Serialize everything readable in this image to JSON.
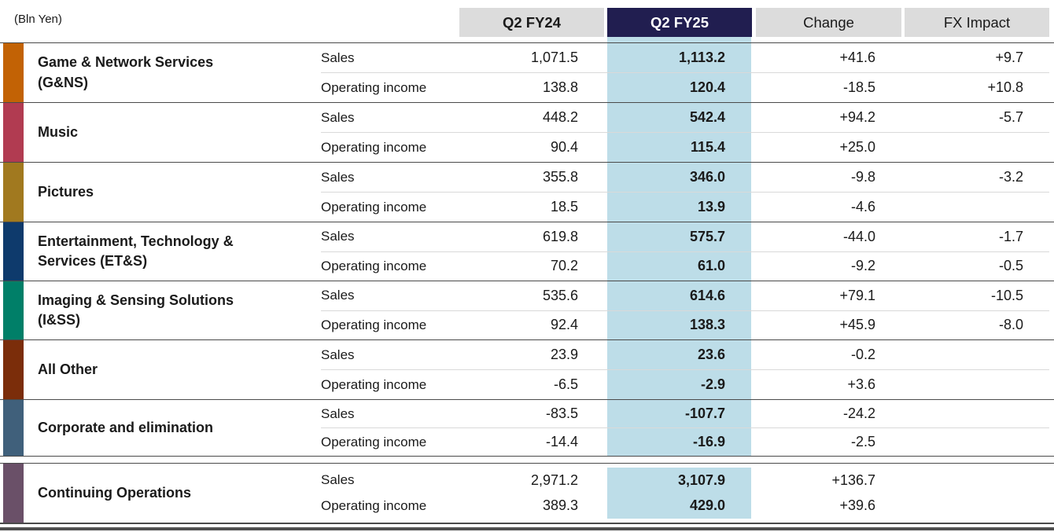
{
  "meta": {
    "unit_label": "(Bln Yen)"
  },
  "columns": {
    "q2fy24": "Q2 FY24",
    "q2fy25": "Q2 FY25",
    "change": "Change",
    "fx": "FX Impact"
  },
  "row_labels": {
    "sales": "Sales",
    "operating_income": "Operating income"
  },
  "colors": {
    "header_highlight_bg": "#211e50",
    "header_gray_bg": "#dcdcdc",
    "fy25_column_band": "#bddde8",
    "bottom_rule": "#4f4f4f"
  },
  "segments": [
    {
      "name": "Game & Network Services\n(G&NS)",
      "bar_color": "#c26205",
      "sales": {
        "q2fy24": "1,071.5",
        "q2fy25": "1,113.2",
        "change": "+41.6",
        "fx": "+9.7"
      },
      "operating_income": {
        "q2fy24": "138.8",
        "q2fy25": "120.4",
        "change": "-18.5",
        "fx": "+10.8"
      }
    },
    {
      "name": "Music",
      "bar_color": "#b13b51",
      "sales": {
        "q2fy24": "448.2",
        "q2fy25": "542.4",
        "change": "+94.2",
        "fx": "-5.7"
      },
      "operating_income": {
        "q2fy24": "90.4",
        "q2fy25": "115.4",
        "change": "+25.0",
        "fx": ""
      }
    },
    {
      "name": "Pictures",
      "bar_color": "#a1791f",
      "sales": {
        "q2fy24": "355.8",
        "q2fy25": "346.0",
        "change": "-9.8",
        "fx": "-3.2"
      },
      "operating_income": {
        "q2fy24": "18.5",
        "q2fy25": "13.9",
        "change": "-4.6",
        "fx": ""
      }
    },
    {
      "name": "Entertainment, Technology &\nServices (ET&S)",
      "bar_color": "#0e3a6c",
      "sales": {
        "q2fy24": "619.8",
        "q2fy25": "575.7",
        "change": "-44.0",
        "fx": "-1.7"
      },
      "operating_income": {
        "q2fy24": "70.2",
        "q2fy25": "61.0",
        "change": "-9.2",
        "fx": "-0.5"
      }
    },
    {
      "name": "Imaging & Sensing Solutions\n(I&SS)",
      "bar_color": "#007f68",
      "sales": {
        "q2fy24": "535.6",
        "q2fy25": "614.6",
        "change": "+79.1",
        "fx": "-10.5"
      },
      "operating_income": {
        "q2fy24": "92.4",
        "q2fy25": "138.3",
        "change": "+45.9",
        "fx": "-8.0"
      }
    },
    {
      "name": "All Other",
      "bar_color": "#7b2d0a",
      "sales": {
        "q2fy24": "23.9",
        "q2fy25": "23.6",
        "change": "-0.2",
        "fx": ""
      },
      "operating_income": {
        "q2fy24": "-6.5",
        "q2fy25": "-2.9",
        "change": "+3.6",
        "fx": ""
      }
    },
    {
      "name": "Corporate and elimination",
      "bar_color": "#40607b",
      "sales": {
        "q2fy24": "-83.5",
        "q2fy25": "-107.7",
        "change": "-24.2",
        "fx": ""
      },
      "operating_income": {
        "q2fy24": "-14.4",
        "q2fy25": "-16.9",
        "change": "-2.5",
        "fx": ""
      }
    },
    {
      "name": "Continuing Operations",
      "bar_color": "#6a5068",
      "sales": {
        "q2fy24": "2,971.2",
        "q2fy25": "3,107.9",
        "change": "+136.7",
        "fx": ""
      },
      "operating_income": {
        "q2fy24": "389.3",
        "q2fy25": "429.0",
        "change": "+39.6",
        "fx": ""
      }
    }
  ]
}
